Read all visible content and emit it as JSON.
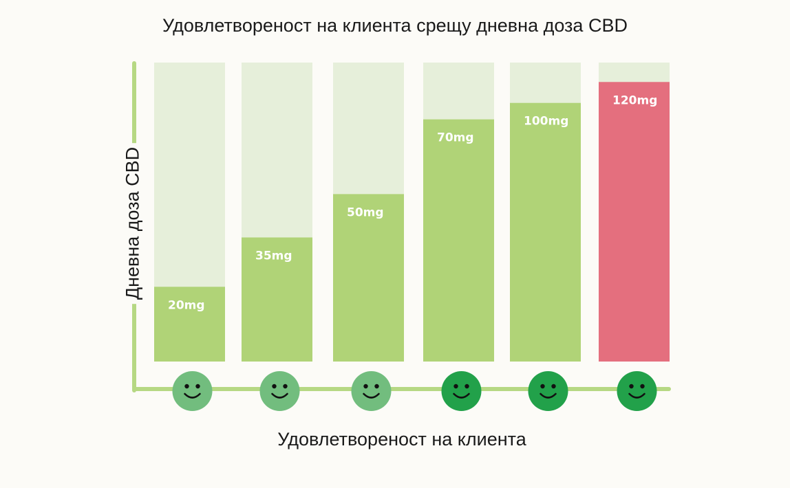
{
  "chart_data": {
    "type": "bar",
    "title": "Удовлетвореност на клиента срещу дневна доза CBD",
    "xlabel": "Удовлетвореност на клиента",
    "ylabel": "Дневна доза CBD",
    "categories": [
      "",
      "",
      "",
      "",
      "",
      ""
    ],
    "values": [
      20,
      35,
      50,
      70,
      100,
      120
    ],
    "data_labels": [
      "20mg",
      "35mg",
      "50mg",
      "70mg",
      "100mg",
      "120mg"
    ],
    "display_fractions": [
      0.25,
      0.415,
      0.56,
      0.81,
      0.865,
      0.935
    ],
    "bar_colors": [
      "#b0d377",
      "#b0d377",
      "#b0d377",
      "#b0d377",
      "#b0d377",
      "#e46f7e"
    ],
    "track_color": "#e6efda",
    "axis_color": "#b6d883",
    "face_colors": [
      "#72bd7e",
      "#72bd7e",
      "#72bd7e",
      "#22a14a",
      "#22a14a",
      "#22a14a"
    ],
    "face_icon": "smiley-face-icon",
    "grid": false
  }
}
